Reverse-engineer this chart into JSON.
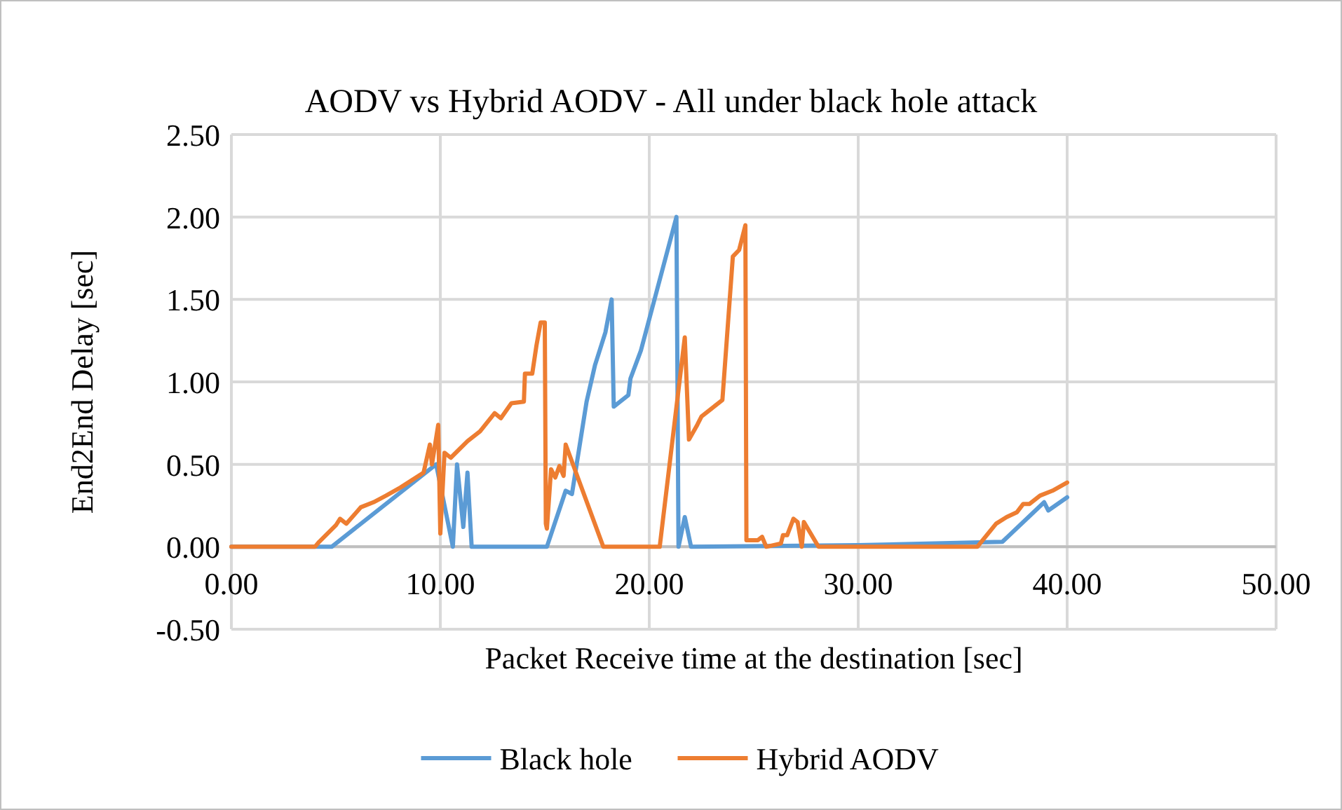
{
  "chart_data": {
    "type": "line",
    "title": "AODV vs Hybrid AODV - All under black hole attack",
    "xlabel": "Packet Receive time at the destination [sec]",
    "ylabel": "End2End Delay [sec]",
    "xlim": [
      0,
      50
    ],
    "xticks": [
      {
        "value": 0,
        "label": "0.00"
      },
      {
        "value": 10,
        "label": "10.00"
      },
      {
        "value": 20,
        "label": "20.00"
      },
      {
        "value": 30,
        "label": "30.00"
      },
      {
        "value": 40,
        "label": "40.00"
      },
      {
        "value": 50,
        "label": "50.00"
      }
    ],
    "ylim": [
      -0.5,
      2.5
    ],
    "yticks": [
      {
        "value": -0.5,
        "label": "-0.50"
      },
      {
        "value": 0,
        "label": "0.00"
      },
      {
        "value": 0.5,
        "label": "0.50"
      },
      {
        "value": 1,
        "label": "1.00"
      },
      {
        "value": 1.5,
        "label": "1.50"
      },
      {
        "value": 2,
        "label": "2.00"
      },
      {
        "value": 2.5,
        "label": "2.50"
      }
    ],
    "grid": true,
    "legend": "bottom",
    "marker": "none",
    "line_style": "solid",
    "series": [
      {
        "name": "Black hole",
        "color": "#5b9bd5",
        "x": [
          0,
          4.8,
          9.6,
          9.8,
          10.6,
          10.8,
          11.1,
          11.3,
          11.5,
          15.1,
          16.0,
          16.3,
          17.0,
          17.4,
          17.9,
          18.2,
          18.3,
          19.0,
          19.1,
          19.6,
          21.3,
          21.4,
          21.7,
          22.0,
          30,
          36.9,
          38.9,
          39.1,
          40
        ],
        "values": [
          0,
          0,
          0.48,
          0.5,
          0,
          0.5,
          0.12,
          0.45,
          0,
          0,
          0.34,
          0.32,
          0.88,
          1.1,
          1.3,
          1.5,
          0.85,
          0.92,
          1.02,
          1.19,
          2.0,
          0,
          0.18,
          0,
          0.01,
          0.03,
          0.27,
          0.22,
          0.3
        ]
      },
      {
        "name": "Hybrid AODV",
        "color": "#ed7d31",
        "x": [
          0,
          4.0,
          4.2,
          5.0,
          5.2,
          5.5,
          6.2,
          6.8,
          7.4,
          8.1,
          9.2,
          9.5,
          9.6,
          9.9,
          10.0,
          10.2,
          10.5,
          11.3,
          11.9,
          12.6,
          12.9,
          13.4,
          14.0,
          14.05,
          14.4,
          14.6,
          14.8,
          15.0,
          15.05,
          15.1,
          15.3,
          15.5,
          15.7,
          15.9,
          16.0,
          17.8,
          20.5,
          21.7,
          21.9,
          22.3,
          22.5,
          23.5,
          24.0,
          24.3,
          24.6,
          24.65,
          25.2,
          25.4,
          25.6,
          26.3,
          26.4,
          26.6,
          26.9,
          27.1,
          27.3,
          27.4,
          28.1,
          35.7,
          36.6,
          37.1,
          37.6,
          37.9,
          38.2,
          38.7,
          39.3,
          40
        ],
        "values": [
          0,
          0,
          0.03,
          0.13,
          0.17,
          0.14,
          0.24,
          0.27,
          0.31,
          0.36,
          0.45,
          0.62,
          0.5,
          0.74,
          0.08,
          0.57,
          0.54,
          0.64,
          0.7,
          0.81,
          0.78,
          0.87,
          0.88,
          1.05,
          1.05,
          1.22,
          1.36,
          1.36,
          0.14,
          0.11,
          0.47,
          0.42,
          0.49,
          0.43,
          0.62,
          0,
          0,
          1.27,
          0.65,
          0.74,
          0.79,
          0.89,
          1.76,
          1.8,
          1.95,
          0.04,
          0.04,
          0.06,
          0,
          0.02,
          0.07,
          0.07,
          0.17,
          0.15,
          0,
          0.15,
          0,
          0,
          0.14,
          0.18,
          0.21,
          0.26,
          0.26,
          0.31,
          0.34,
          0.39
        ]
      }
    ]
  }
}
